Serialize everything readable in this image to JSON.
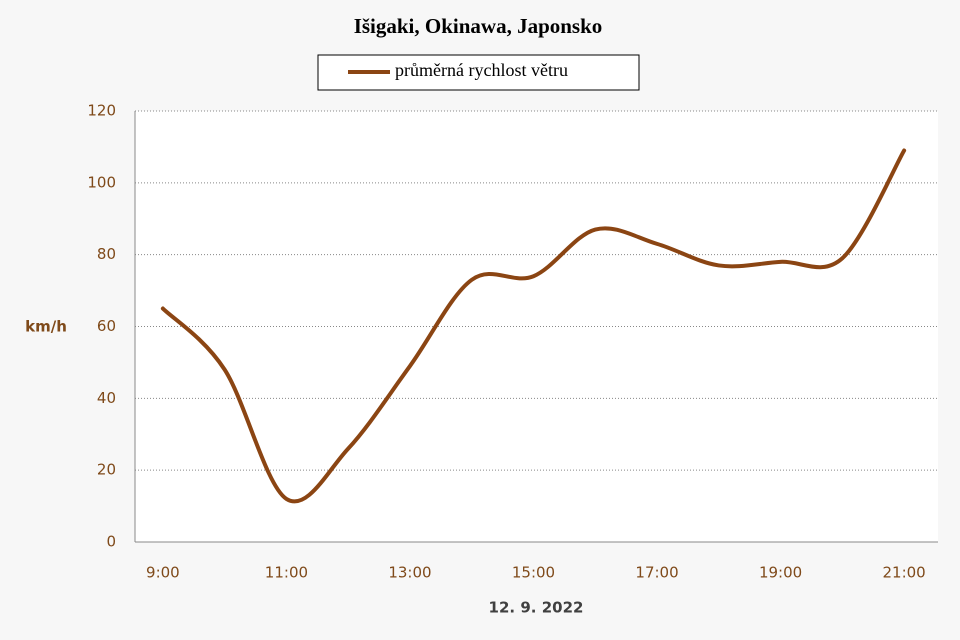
{
  "chart_data": {
    "type": "line",
    "title": "Išigaki, Okinawa, Japonsko",
    "x_label": "12. 9. 2022",
    "y_label": "km/h",
    "categories": [
      "9:00",
      null,
      "11:00",
      null,
      "13:00",
      null,
      "15:00",
      null,
      "17:00",
      null,
      "19:00",
      null,
      "21:00"
    ],
    "series": [
      {
        "name": "průměrná rychlost větru",
        "color": "#8b4513",
        "values": [
          65,
          48,
          12,
          26,
          49,
          73,
          74,
          87,
          83,
          77,
          78,
          79,
          109
        ]
      }
    ],
    "ylim": [
      0,
      120
    ],
    "yticks": [
      0,
      20,
      40,
      60,
      80,
      100,
      120
    ],
    "grid": true
  }
}
